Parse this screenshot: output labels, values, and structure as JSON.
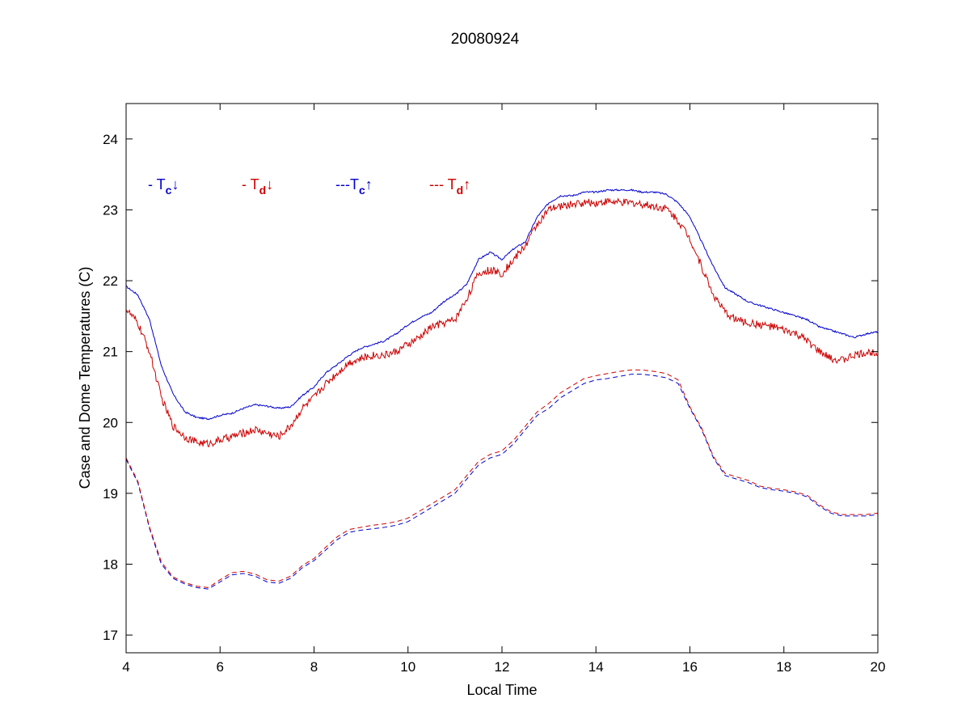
{
  "chart_data": {
    "type": "line",
    "title": "20080924",
    "xlabel": "Local Time",
    "ylabel": "Case and Dome Temperatures (C)",
    "xlim": [
      4,
      20
    ],
    "ylim": [
      16.75,
      24.5
    ],
    "xticks": [
      4,
      6,
      8,
      10,
      12,
      14,
      16,
      18,
      20
    ],
    "yticks": [
      17,
      18,
      19,
      20,
      21,
      22,
      23,
      24
    ],
    "grid": false,
    "legend": [
      {
        "prefix": "- ",
        "symbol": "T",
        "sub": "c",
        "arrow": "↓",
        "color": "#0000cc"
      },
      {
        "prefix": "- ",
        "symbol": "T",
        "sub": "d",
        "arrow": "↓",
        "color": "#cc0000"
      },
      {
        "prefix": "---",
        "symbol": "T",
        "sub": "c",
        "arrow": "↑",
        "color": "#0000cc"
      },
      {
        "prefix": "--- ",
        "symbol": "T",
        "sub": "d",
        "arrow": "↑",
        "color": "#cc0000"
      }
    ],
    "legend_position": "top-left",
    "series": [
      {
        "color": "#0000cc",
        "style": "solid",
        "noise": 0.012,
        "x": [
          4.0,
          4.25,
          4.5,
          4.75,
          5.0,
          5.25,
          5.5,
          5.75,
          6.0,
          6.25,
          6.5,
          6.75,
          7.0,
          7.25,
          7.5,
          7.75,
          8.0,
          8.25,
          8.5,
          8.75,
          9.0,
          9.25,
          9.5,
          9.75,
          10.0,
          10.25,
          10.5,
          10.75,
          11.0,
          11.25,
          11.5,
          11.75,
          12.0,
          12.25,
          12.5,
          12.75,
          13.0,
          13.25,
          13.5,
          13.75,
          14.0,
          14.25,
          14.5,
          14.75,
          15.0,
          15.25,
          15.5,
          15.75,
          16.0,
          16.25,
          16.5,
          16.75,
          17.0,
          17.25,
          17.5,
          17.75,
          18.0,
          18.25,
          18.5,
          18.75,
          19.0,
          19.25,
          19.5,
          19.75,
          20.0
        ],
        "y": [
          21.92,
          21.8,
          21.45,
          20.8,
          20.4,
          20.15,
          20.07,
          20.05,
          20.1,
          20.13,
          20.2,
          20.25,
          20.23,
          20.2,
          20.22,
          20.38,
          20.5,
          20.7,
          20.82,
          20.95,
          21.05,
          21.1,
          21.15,
          21.25,
          21.38,
          21.48,
          21.55,
          21.7,
          21.8,
          21.95,
          22.3,
          22.4,
          22.3,
          22.45,
          22.55,
          22.9,
          23.1,
          23.2,
          23.2,
          23.25,
          23.25,
          23.28,
          23.28,
          23.28,
          23.25,
          23.25,
          23.22,
          23.1,
          22.9,
          22.55,
          22.2,
          21.9,
          21.8,
          21.7,
          21.65,
          21.6,
          21.55,
          21.5,
          21.45,
          21.35,
          21.3,
          21.25,
          21.2,
          21.25,
          21.28
        ]
      },
      {
        "color": "#cc0000",
        "style": "solid",
        "noise": 0.055,
        "x": [
          4.0,
          4.25,
          4.5,
          4.75,
          5.0,
          5.25,
          5.5,
          5.75,
          6.0,
          6.25,
          6.5,
          6.75,
          7.0,
          7.25,
          7.5,
          7.75,
          8.0,
          8.25,
          8.5,
          8.75,
          9.0,
          9.25,
          9.5,
          9.75,
          10.0,
          10.25,
          10.5,
          10.75,
          11.0,
          11.25,
          11.5,
          11.75,
          12.0,
          12.25,
          12.5,
          12.75,
          13.0,
          13.25,
          13.5,
          13.75,
          14.0,
          14.25,
          14.5,
          14.75,
          15.0,
          15.25,
          15.5,
          15.75,
          16.0,
          16.25,
          16.5,
          16.75,
          17.0,
          17.25,
          17.5,
          17.75,
          18.0,
          18.25,
          18.5,
          18.75,
          19.0,
          19.25,
          19.5,
          19.75,
          20.0
        ],
        "y": [
          21.6,
          21.4,
          21.0,
          20.35,
          19.95,
          19.8,
          19.72,
          19.7,
          19.75,
          19.8,
          19.85,
          19.9,
          19.85,
          19.8,
          19.95,
          20.2,
          20.35,
          20.55,
          20.7,
          20.85,
          20.9,
          20.95,
          20.95,
          21.0,
          21.1,
          21.2,
          21.35,
          21.4,
          21.45,
          21.75,
          22.1,
          22.15,
          22.1,
          22.3,
          22.5,
          22.8,
          23.0,
          23.05,
          23.08,
          23.1,
          23.1,
          23.12,
          23.1,
          23.1,
          23.08,
          23.05,
          23.02,
          22.85,
          22.6,
          22.2,
          21.8,
          21.55,
          21.45,
          21.4,
          21.38,
          21.35,
          21.3,
          21.25,
          21.15,
          21.0,
          20.9,
          20.88,
          20.95,
          20.98,
          21.0
        ]
      },
      {
        "color": "#0000cc",
        "style": "dashed",
        "noise": 0.0,
        "x": [
          4.0,
          4.25,
          4.5,
          4.75,
          5.0,
          5.25,
          5.5,
          5.75,
          6.0,
          6.25,
          6.5,
          6.75,
          7.0,
          7.25,
          7.5,
          7.75,
          8.0,
          8.25,
          8.5,
          8.75,
          9.0,
          9.25,
          9.5,
          9.75,
          10.0,
          10.25,
          10.5,
          10.75,
          11.0,
          11.25,
          11.5,
          11.75,
          12.0,
          12.25,
          12.5,
          12.75,
          13.0,
          13.25,
          13.5,
          13.75,
          14.0,
          14.25,
          14.5,
          14.75,
          15.0,
          15.25,
          15.5,
          15.75,
          16.0,
          16.25,
          16.5,
          16.75,
          17.0,
          17.25,
          17.5,
          17.75,
          18.0,
          18.25,
          18.5,
          18.75,
          19.0,
          19.25,
          19.5,
          19.75,
          20.0
        ],
        "y": [
          19.48,
          19.15,
          18.5,
          18.0,
          17.8,
          17.72,
          17.67,
          17.65,
          17.75,
          17.85,
          17.87,
          17.83,
          17.75,
          17.73,
          17.8,
          17.95,
          18.05,
          18.2,
          18.35,
          18.45,
          18.48,
          18.5,
          18.52,
          18.55,
          18.6,
          18.7,
          18.8,
          18.9,
          19.0,
          19.2,
          19.4,
          19.5,
          19.55,
          19.7,
          19.9,
          20.1,
          20.2,
          20.35,
          20.45,
          20.55,
          20.6,
          20.62,
          20.65,
          20.68,
          20.68,
          20.66,
          20.63,
          20.55,
          20.2,
          19.9,
          19.5,
          19.25,
          19.2,
          19.15,
          19.08,
          19.05,
          19.03,
          19.0,
          18.95,
          18.82,
          18.72,
          18.68,
          18.68,
          18.68,
          18.7
        ]
      },
      {
        "color": "#cc0000",
        "style": "dashed",
        "noise": 0.0,
        "x": [
          4.0,
          4.25,
          4.5,
          4.75,
          5.0,
          5.25,
          5.5,
          5.75,
          6.0,
          6.25,
          6.5,
          6.75,
          7.0,
          7.25,
          7.5,
          7.75,
          8.0,
          8.25,
          8.5,
          8.75,
          9.0,
          9.25,
          9.5,
          9.75,
          10.0,
          10.25,
          10.5,
          10.75,
          11.0,
          11.25,
          11.5,
          11.75,
          12.0,
          12.25,
          12.5,
          12.75,
          13.0,
          13.25,
          13.5,
          13.75,
          14.0,
          14.25,
          14.5,
          14.75,
          15.0,
          15.25,
          15.5,
          15.75,
          16.0,
          16.25,
          16.5,
          16.75,
          17.0,
          17.25,
          17.5,
          17.75,
          18.0,
          18.25,
          18.5,
          18.75,
          19.0,
          19.25,
          19.5,
          19.75,
          20.0
        ],
        "y": [
          19.5,
          19.17,
          18.52,
          18.03,
          17.82,
          17.74,
          17.69,
          17.67,
          17.78,
          17.88,
          17.9,
          17.86,
          17.78,
          17.76,
          17.83,
          17.98,
          18.08,
          18.24,
          18.39,
          18.49,
          18.52,
          18.55,
          18.57,
          18.6,
          18.65,
          18.75,
          18.85,
          18.95,
          19.05,
          19.25,
          19.45,
          19.55,
          19.6,
          19.75,
          19.95,
          20.15,
          20.27,
          20.42,
          20.52,
          20.62,
          20.66,
          20.69,
          20.72,
          20.74,
          20.74,
          20.72,
          20.69,
          20.6,
          20.22,
          19.92,
          19.52,
          19.28,
          19.23,
          19.18,
          19.1,
          19.07,
          19.05,
          19.02,
          18.97,
          18.84,
          18.74,
          18.7,
          18.7,
          18.7,
          18.72
        ]
      }
    ]
  }
}
